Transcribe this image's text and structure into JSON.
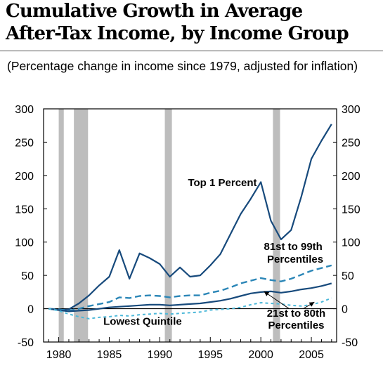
{
  "title_line1": "Cumulative Growth in Average",
  "title_line2": "After-Tax Income, by Income Group",
  "subtitle": "(Percentage change in income since 1979, adjusted for inflation)",
  "chart_data": {
    "type": "line",
    "xlim": [
      1978.5,
      2007.5
    ],
    "ylim": [
      -50,
      300
    ],
    "x_ticks": [
      1980,
      1985,
      1990,
      1995,
      2000,
      2005
    ],
    "y_ticks": [
      -50,
      0,
      50,
      100,
      150,
      200,
      250,
      300
    ],
    "grid": false,
    "recession_bands": [
      [
        1980.0,
        1980.5
      ],
      [
        1981.5,
        1982.9
      ],
      [
        1990.5,
        1991.2
      ],
      [
        2001.2,
        2001.9
      ]
    ],
    "x": [
      1979,
      1980,
      1981,
      1982,
      1983,
      1984,
      1985,
      1986,
      1987,
      1988,
      1989,
      1990,
      1991,
      1992,
      1993,
      1994,
      1995,
      1996,
      1997,
      1998,
      1999,
      2000,
      2001,
      2002,
      2003,
      2004,
      2005,
      2006,
      2007
    ],
    "series": [
      {
        "name": "Top 1 Percent",
        "color": "#174a7c",
        "dash": "solid",
        "width": 2.2,
        "values": [
          0,
          -2,
          -1,
          8,
          20,
          35,
          48,
          88,
          45,
          83,
          76,
          67,
          48,
          62,
          48,
          50,
          65,
          82,
          112,
          142,
          165,
          190,
          132,
          104,
          118,
          168,
          225,
          252,
          277
        ]
      },
      {
        "name": "81st to 99th Percentiles",
        "color": "#2b86b7",
        "dash": "long",
        "width": 2.4,
        "values": [
          0,
          -1,
          -3,
          0,
          4,
          7,
          10,
          17,
          16,
          19,
          20,
          19,
          17,
          19,
          20,
          20,
          24,
          27,
          32,
          38,
          42,
          46,
          43,
          41,
          45,
          51,
          57,
          61,
          65
        ]
      },
      {
        "name": "21st to 80th Percentiles",
        "color": "#174a7c",
        "dash": "solid",
        "width": 2.2,
        "values": [
          0,
          -2,
          -4,
          -3,
          -2,
          0,
          2,
          3,
          4,
          5,
          6,
          6,
          5,
          6,
          7,
          8,
          10,
          12,
          15,
          19,
          23,
          25,
          26,
          24,
          26,
          29,
          31,
          34,
          38
        ]
      },
      {
        "name": "Lowest Quintile",
        "color": "#4cb8d9",
        "dash": "short",
        "width": 2.0,
        "values": [
          0,
          -3,
          -8,
          -12,
          -15,
          -13,
          -12,
          -10,
          -11,
          -9,
          -8,
          -7,
          -8,
          -7,
          -6,
          -5,
          -2,
          -1,
          0,
          2,
          6,
          9,
          8,
          7,
          5,
          4,
          6,
          10,
          16
        ]
      }
    ],
    "annotations": [
      {
        "text": "Top 1 Percent",
        "x": 1996.2,
        "y": 184,
        "weight": "bold",
        "anchor": "middle"
      },
      {
        "text": "81st to 99th",
        "x": 2003.2,
        "y": 88,
        "weight": "bold",
        "anchor": "middle"
      },
      {
        "text": "Percentiles",
        "x": 2003.4,
        "y": 69,
        "weight": "bold",
        "anchor": "middle"
      },
      {
        "text": "Lowest Quintile",
        "x": 1988.3,
        "y": -24,
        "weight": "bold",
        "anchor": "middle"
      },
      {
        "text": "21st to 80th",
        "x": 2003.5,
        "y": -12,
        "weight": "bold",
        "anchor": "middle"
      },
      {
        "text": "Percentiles",
        "x": 2003.5,
        "y": -30,
        "weight": "bold",
        "anchor": "middle"
      }
    ],
    "arrows": [
      {
        "from": [
          2002.8,
          0
        ],
        "to": [
          2000.3,
          26
        ]
      },
      {
        "from": [
          2004.2,
          0
        ],
        "to": [
          2005.3,
          10
        ]
      }
    ]
  }
}
